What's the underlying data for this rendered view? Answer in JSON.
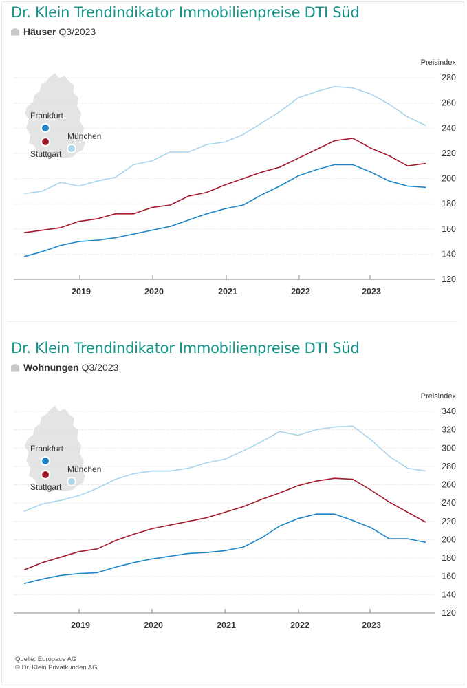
{
  "footer": {
    "source": "Quelle: Europace AG",
    "copyright": "© Dr. Klein Privatkunden AG"
  },
  "map_legend": {
    "cities": [
      {
        "name": "Frankfurt",
        "color": "#1a86c8"
      },
      {
        "name": "Stuttgart",
        "color": "#a3192a"
      },
      {
        "name": "München",
        "color": "#a8d4ec"
      }
    ]
  },
  "chart_data": [
    {
      "type": "line",
      "title": "Dr. Klein Trendindikator Immobilienpreise DTI Süd",
      "subtitle_bold": "Häuser",
      "subtitle_period": "Q3/2023",
      "ylabel": "Preisindex",
      "xlabel": "",
      "ylim": [
        120,
        280
      ],
      "yticks": [
        120,
        140,
        160,
        180,
        200,
        220,
        240,
        260,
        280
      ],
      "xtick_labels": [
        "2019",
        "2020",
        "2021",
        "2022",
        "2023"
      ],
      "x": [
        "2018-Q2",
        "2018-Q3",
        "2018-Q4",
        "2019-Q1",
        "2019-Q2",
        "2019-Q3",
        "2019-Q4",
        "2020-Q1",
        "2020-Q2",
        "2020-Q3",
        "2020-Q4",
        "2021-Q1",
        "2021-Q2",
        "2021-Q3",
        "2021-Q4",
        "2022-Q1",
        "2022-Q2",
        "2022-Q3",
        "2022-Q4",
        "2023-Q1",
        "2023-Q2",
        "2023-Q3",
        "2023-Q4"
      ],
      "grid": true,
      "series": [
        {
          "name": "München",
          "color": "#a8d4ec",
          "values": [
            188,
            190,
            197,
            194,
            198,
            201,
            211,
            214,
            221,
            221,
            227,
            229,
            235,
            244,
            253,
            264,
            269,
            273,
            272,
            267,
            259,
            249,
            242
          ]
        },
        {
          "name": "Stuttgart",
          "color": "#a3192a",
          "values": [
            157,
            159,
            161,
            166,
            168,
            172,
            172,
            177,
            179,
            186,
            189,
            195,
            200,
            205,
            209,
            216,
            223,
            230,
            232,
            224,
            218,
            210,
            212
          ]
        },
        {
          "name": "Frankfurt",
          "color": "#1a86c8",
          "values": [
            138,
            142,
            147,
            150,
            151,
            153,
            156,
            159,
            162,
            167,
            172,
            176,
            179,
            187,
            194,
            202,
            207,
            211,
            211,
            205,
            198,
            194,
            193
          ]
        }
      ]
    },
    {
      "type": "line",
      "title": "Dr. Klein Trendindikator Immobilienpreise DTI Süd",
      "subtitle_bold": "Wohnungen",
      "subtitle_period": "Q3/2023",
      "ylabel": "Preisindex",
      "xlabel": "",
      "ylim": [
        120,
        340
      ],
      "yticks": [
        120,
        140,
        160,
        180,
        200,
        220,
        240,
        260,
        280,
        300,
        320,
        340
      ],
      "xtick_labels": [
        "2019",
        "2020",
        "2021",
        "2022",
        "2023"
      ],
      "x": [
        "2018-Q2",
        "2018-Q3",
        "2018-Q4",
        "2019-Q1",
        "2019-Q2",
        "2019-Q3",
        "2019-Q4",
        "2020-Q1",
        "2020-Q2",
        "2020-Q3",
        "2020-Q4",
        "2021-Q1",
        "2021-Q2",
        "2021-Q3",
        "2021-Q4",
        "2022-Q1",
        "2022-Q2",
        "2022-Q3",
        "2022-Q4",
        "2023-Q1",
        "2023-Q2",
        "2023-Q3",
        "2023-Q4"
      ],
      "grid": true,
      "series": [
        {
          "name": "München",
          "color": "#a8d4ec",
          "values": [
            231,
            239,
            243,
            248,
            256,
            266,
            272,
            275,
            275,
            278,
            284,
            288,
            297,
            307,
            318,
            314,
            320,
            323,
            324,
            309,
            291,
            278,
            275
          ]
        },
        {
          "name": "Stuttgart",
          "color": "#a3192a",
          "values": [
            167,
            175,
            181,
            187,
            190,
            199,
            206,
            212,
            216,
            220,
            224,
            230,
            236,
            244,
            251,
            259,
            264,
            267,
            266,
            254,
            241,
            230,
            219
          ]
        },
        {
          "name": "Frankfurt",
          "color": "#1a86c8",
          "values": [
            152,
            157,
            161,
            163,
            164,
            170,
            175,
            179,
            182,
            185,
            186,
            188,
            192,
            202,
            215,
            223,
            228,
            228,
            221,
            213,
            201,
            201,
            197
          ]
        }
      ]
    }
  ]
}
